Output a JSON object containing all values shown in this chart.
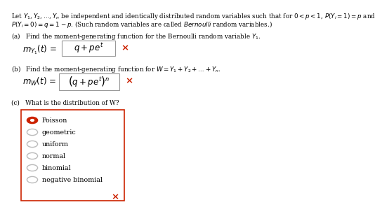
{
  "bg_color": "#ffffff",
  "text_color": "#000000",
  "header_line1": "Let $Y_1, Y_2, \\ldots, Y_n$ be independent and identically distributed random variables such that for $0 < p < 1$, $P(Y_i = 1) = p$ and",
  "header_line2": "$P(Y_i = 0) = q = 1 - p$. (Such random variables are called $\\it{Bernoulli}$ random variables.)",
  "part_a_label": "(a)   Find the moment-generating function for the Bernoulli random variable $Y_1$.",
  "part_a_prefix": "$m_{Y_1}(t)\\, =\\,$",
  "part_a_formula": "$q + pe^t$",
  "part_b_label": "(b)   Find the moment-generating function for $W = Y_1 + Y_2 + \\ldots + Y_n$.",
  "part_b_prefix": "$m_W(t)\\, =\\,$",
  "part_b_formula": "$\\left(q + pe^t\\right)^n$",
  "part_c_label": "(c)   What is the distribution of W?",
  "radio_options": [
    "Poisson",
    "geometric",
    "uniform",
    "normal",
    "binomial",
    "negative binomial"
  ],
  "selected_option": 0,
  "selected_color": "#cc2200",
  "box_color": "#cc2200",
  "radio_unselected_color": "#bbbbbb",
  "x_mark_color": "#cc2200",
  "font_size_header": 6.3,
  "font_size_label": 6.3,
  "font_size_formula": 8.5,
  "font_size_options": 6.8
}
